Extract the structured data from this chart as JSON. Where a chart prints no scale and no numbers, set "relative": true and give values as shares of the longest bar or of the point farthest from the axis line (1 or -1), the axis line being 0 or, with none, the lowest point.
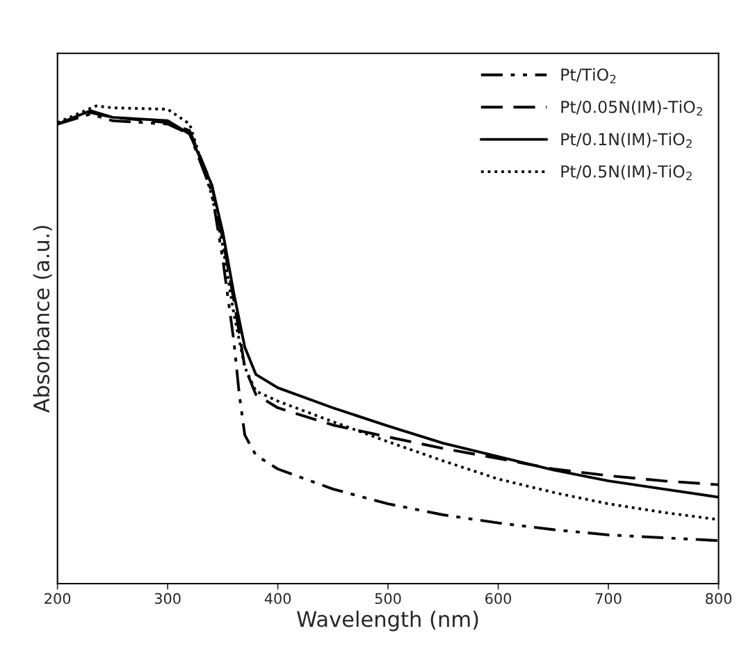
{
  "chart_data": {
    "type": "line",
    "xlabel": "Wavelength (nm)",
    "ylabel": "Absorbance (a.u.)",
    "relative": true,
    "xlim": [
      200,
      800
    ],
    "xticks": [
      200,
      300,
      400,
      500,
      600,
      700,
      800
    ],
    "grid": false,
    "legend": "top right",
    "marker": "none",
    "series": [
      {
        "name": "Pt/TiO$_{2}$",
        "color": "#000000",
        "line_style": "dashdot",
        "x": [
          200,
          230,
          250,
          300,
          320,
          340,
          350,
          360,
          365,
          370,
          380,
          400,
          450,
          500,
          550,
          600,
          650,
          700,
          750,
          800
        ],
        "values": [
          0.962,
          0.983,
          0.969,
          0.962,
          0.941,
          0.82,
          0.679,
          0.509,
          0.396,
          0.311,
          0.269,
          0.24,
          0.198,
          0.167,
          0.144,
          0.127,
          0.113,
          0.102,
          0.096,
          0.09
        ]
      },
      {
        "name": "Pt/0.05N(IM)-TiO$_{2}$",
        "color": "#000000",
        "line_style": "dashed",
        "x": [
          200,
          230,
          250,
          300,
          320,
          340,
          350,
          360,
          370,
          380,
          400,
          450,
          500,
          550,
          600,
          650,
          700,
          750,
          800
        ],
        "values": [
          0.962,
          0.986,
          0.976,
          0.965,
          0.948,
          0.835,
          0.721,
          0.594,
          0.453,
          0.396,
          0.368,
          0.332,
          0.307,
          0.283,
          0.262,
          0.24,
          0.226,
          0.215,
          0.207
        ]
      },
      {
        "name": "Pt/0.1N(IM)-TiO$_{2}$",
        "color": "#000000",
        "line_style": "solid",
        "x": [
          200,
          230,
          250,
          300,
          320,
          340,
          350,
          360,
          370,
          380,
          400,
          450,
          500,
          550,
          600,
          650,
          700,
          750,
          800
        ],
        "values": [
          0.962,
          0.99,
          0.976,
          0.969,
          0.941,
          0.835,
          0.736,
          0.608,
          0.495,
          0.438,
          0.41,
          0.368,
          0.33,
          0.294,
          0.266,
          0.238,
          0.215,
          0.198,
          0.181
        ]
      },
      {
        "name": "Pt/0.5N(IM)-TiO$_{2}$",
        "color": "#000000",
        "line_style": "dotted",
        "x": [
          200,
          235,
          250,
          300,
          320,
          340,
          350,
          360,
          370,
          380,
          400,
          450,
          500,
          550,
          600,
          650,
          700,
          750,
          800
        ],
        "values": [
          0.965,
          1.0,
          0.996,
          0.993,
          0.962,
          0.813,
          0.707,
          0.566,
          0.453,
          0.403,
          0.382,
          0.339,
          0.297,
          0.257,
          0.219,
          0.191,
          0.167,
          0.149,
          0.134
        ]
      }
    ]
  }
}
